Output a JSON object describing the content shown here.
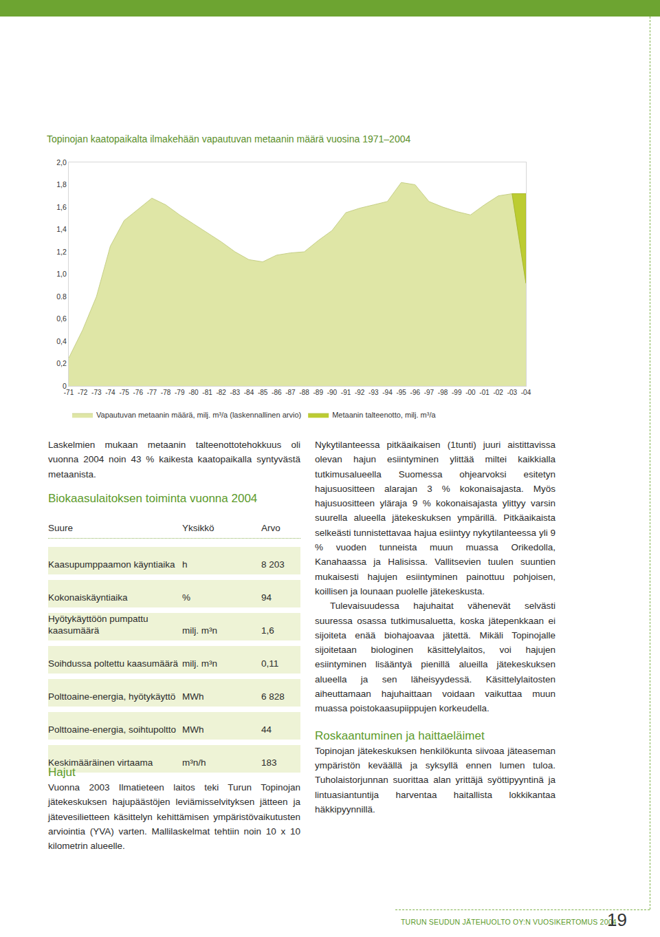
{
  "chart_data": {
    "type": "area",
    "title": "Topinojan kaatopaikalta ilmakehään vapautuvan metaanin määrä vuosina 1971–2004",
    "categories": [
      "-71",
      "-72",
      "-73",
      "-74",
      "-75",
      "-76",
      "-77",
      "-78",
      "-79",
      "-80",
      "-81",
      "-82",
      "-83",
      "-84",
      "-85",
      "-86",
      "-87",
      "-88",
      "-89",
      "-90",
      "-91",
      "-92",
      "-93",
      "-94",
      "-95",
      "-96",
      "-97",
      "-98",
      "-99",
      "-00",
      "-01",
      "-02",
      "-03",
      "-04"
    ],
    "series": [
      {
        "name": "Vapautuvan metaanin määrä, milj. m³/a (laskennallinen arvio)",
        "color": "#dfe6a6",
        "values": [
          0.25,
          0.5,
          0.8,
          1.25,
          1.48,
          1.58,
          1.68,
          1.62,
          1.53,
          1.45,
          1.37,
          1.29,
          1.2,
          1.13,
          1.11,
          1.17,
          1.19,
          1.2,
          1.3,
          1.39,
          1.55,
          1.59,
          1.62,
          1.65,
          1.82,
          1.8,
          1.65,
          1.6,
          1.56,
          1.53,
          1.62,
          1.7,
          1.72,
          0.92
        ]
      },
      {
        "name": "Metaanin talteenotto, milj. m³/a",
        "color": "#bccc32",
        "values": [
          null,
          null,
          null,
          null,
          null,
          null,
          null,
          null,
          null,
          null,
          null,
          null,
          null,
          null,
          null,
          null,
          null,
          null,
          null,
          null,
          null,
          null,
          null,
          null,
          null,
          null,
          null,
          null,
          null,
          null,
          null,
          null,
          0,
          0.8
        ]
      }
    ],
    "stacked": true,
    "ylim": [
      0,
      2
    ],
    "yticks": [
      0,
      {
        "value": 0.2,
        "label": "0,2"
      },
      {
        "value": 0.4,
        "label": "0,4"
      },
      {
        "value": 0.6,
        "label": "0,6"
      },
      {
        "value": 0.8,
        "label": "0.8"
      },
      {
        "value": 1.0,
        "label": "1,0"
      },
      {
        "value": 1.2,
        "label": "1,2"
      },
      {
        "value": 1.4,
        "label": "1,4"
      },
      {
        "value": 1.6,
        "label": "1,6"
      },
      {
        "value": 1.8,
        "label": "1,8"
      },
      {
        "value": 2.0,
        "label": "2,0"
      }
    ],
    "grid": false,
    "legend": "bottom"
  },
  "page": {
    "intro": "Laskelmien mukaan metaanin talteenottotehokkuus oli vuonna 2004 noin 43 % kaikesta kaatopaikalla syntyvästä metaanista.",
    "table": {
      "title": "Biokaasulaitoksen toiminta vuonna 2004",
      "header": [
        "Suure",
        "Yksikkö",
        "Arvo"
      ],
      "rows": [
        [
          "Kaasupumppaamon käyntiaika",
          "h",
          "8 203"
        ],
        [
          "Kokonaiskäyntiaika",
          "%",
          "94"
        ],
        [
          "Hyötykäyttöön pumpattu kaasumäärä",
          "milj. m³n",
          "1,6"
        ],
        [
          "Soihdussa poltettu kaasumäärä",
          "milj. m³n",
          "0,11"
        ],
        [
          "Polttoaine-energia, hyötykäyttö",
          "MWh",
          "6 828"
        ],
        [
          "Polttoaine-energia, soihtupoltto",
          "MWh",
          "44"
        ],
        [
          "Keskimääräinen virtaama",
          "m³n/h",
          "183"
        ]
      ]
    },
    "hajut": {
      "heading": "Hajut",
      "text": "Vuonna 2003 Ilmatieteen laitos teki Turun Topinojan jätekeskuksen hajupäästöjen leviämisselvityksen jätteen ja jätevesilietteen käsittelyn kehittämisen ympäristövaikutusten arviointia (YVA) varten. Mallilaskelmat tehtiin noin 10 x 10 kilometrin alueelle."
    },
    "right": {
      "paragraphs": [
        "Nykytilanteessa pitkäaikaisen (1tunti) juuri aistittavissa olevan hajun esiintyminen ylittää miltei kaikkialla tutkimusalueella Suomessa ohjearvoksi esitetyn hajusuositteen alarajan 3 % kokonaisajasta. Myös hajusuositteen yläraja 9 % kokonaisajasta ylittyy varsin suurella alueella jätekeskuksen ympärillä. Pitkäaikaista selkeästi tunnistettavaa hajua esiintyy nykytilanteessa yli 9 % vuoden tunneista muun muassa Orikedolla, Kanahaassa ja Halisissa. Vallitsevien tuulen suuntien mukaisesti hajujen esiintyminen painottuu pohjoisen, koillisen ja lounaan puolelle jätekeskusta.",
        "Tulevaisuudessa hajuhaitat vähenevät selvästi suuressa osassa tutkimusaluetta, koska jätepenkkaan ei sijoiteta enää biohajoavaa jätettä. Mikäli Topinojalle sijoitetaan biologinen käsittelylaitos, voi hajujen esiintyminen lisääntyä pienillä alueilla jätekeskuksen alueella ja sen läheisyydessä. Käsittelylaitosten aiheuttamaan hajuhaittaan voidaan vaikuttaa muun muassa poistokaasupiippujen korkeudella."
      ],
      "heading": "Roskaantuminen ja haittaeläimet",
      "text": "Topinojan jätekeskuksen henkilökunta siivoaa jäteaseman ympäristön keväällä ja syksyllä ennen lumen tuloa. Tuholaistorjunnan suorittaa alan yrittäjä syöttipyyntinä ja lintuasiantuntija harventaa haitallista lokkikantaa häkkipyynnillä."
    },
    "footer": {
      "text": "TURUN SEUDUN JÄTEHUOLTO OY:N VUOSIKERTOMUS 2004",
      "page": "19"
    }
  }
}
